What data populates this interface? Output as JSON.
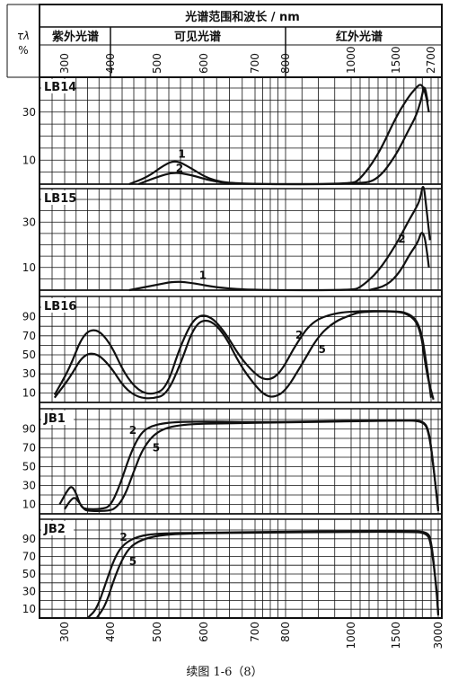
{
  "header": {
    "ylabel": "τλ",
    "yunit": "%",
    "title": "光谱范围和波长 / nm",
    "regions": [
      "紫外光谱",
      "可见光谱",
      "红外光谱"
    ]
  },
  "caption": "续图 1-6（8）",
  "chart_data": {
    "type": "line",
    "x_axis": {
      "label": "光谱范围和波长 / nm",
      "top_ticks": [
        "300",
        "400",
        "500",
        "600",
        "700",
        "800",
        "1000",
        "1500",
        "2700"
      ],
      "bottom_ticks": [
        "300",
        "400",
        "500",
        "600",
        "700",
        "800",
        "1000",
        "1500",
        "3000"
      ]
    },
    "panels": [
      {
        "name": "LB14",
        "yticks": [
          "30",
          "10"
        ],
        "ylim": [
          0,
          40
        ],
        "series": [
          {
            "name": "1",
            "points": [
              [
                440,
                0
              ],
              [
                480,
                3
              ],
              [
                515,
                8
              ],
              [
                540,
                10
              ],
              [
                570,
                7
              ],
              [
                610,
                2
              ],
              [
                660,
                0
              ],
              [
                1000,
                0
              ],
              [
                1100,
                2
              ],
              [
                1300,
                12
              ],
              [
                1500,
                28
              ],
              [
                1800,
                36
              ],
              [
                2000,
                40
              ],
              [
                2250,
                42
              ],
              [
                2450,
                38
              ],
              [
                2600,
                30
              ]
            ]
          },
          {
            "name": "2",
            "points": [
              [
                460,
                0
              ],
              [
                500,
                3
              ],
              [
                535,
                5
              ],
              [
                570,
                4
              ],
              [
                620,
                1
              ],
              [
                670,
                0
              ],
              [
                1100,
                0
              ],
              [
                1300,
                2
              ],
              [
                1500,
                12
              ],
              [
                1800,
                22
              ],
              [
                2000,
                28
              ],
              [
                2250,
                35
              ],
              [
                2400,
                42
              ],
              [
                2550,
                34
              ]
            ]
          }
        ],
        "labels": [
          {
            "text": "1",
            "at": [
              545,
              11
            ]
          },
          {
            "text": "2",
            "at": [
              540,
              5
            ]
          }
        ]
      },
      {
        "name": "LB15",
        "yticks": [
          "30",
          "10"
        ],
        "ylim": [
          0,
          40
        ],
        "series": [
          {
            "name": "1",
            "points": [
              [
                440,
                0
              ],
              [
                490,
                2
              ],
              [
                540,
                4
              ],
              [
                580,
                3
              ],
              [
                630,
                1
              ],
              [
                700,
                0
              ],
              [
                1000,
                0
              ],
              [
                1100,
                1
              ],
              [
                1300,
                8
              ],
              [
                1500,
                20
              ],
              [
                1800,
                30
              ],
              [
                2000,
                36
              ],
              [
                2200,
                40
              ],
              [
                2350,
                48
              ],
              [
                2500,
                35
              ],
              [
                2650,
                22
              ]
            ]
          },
          {
            "name": "2",
            "points": [
              [
                1200,
                0
              ],
              [
                1400,
                2
              ],
              [
                1600,
                8
              ],
              [
                1850,
                16
              ],
              [
                2100,
                21
              ],
              [
                2250,
                26
              ],
              [
                2400,
                24
              ],
              [
                2500,
                18
              ],
              [
                2600,
                10
              ]
            ]
          }
        ],
        "labels": [
          {
            "text": "1",
            "at": [
              590,
              5
            ]
          },
          {
            "text": "2",
            "at": [
              1550,
              21
            ]
          }
        ]
      },
      {
        "name": "LB16",
        "yticks": [
          "90",
          "70",
          "50",
          "30",
          "10"
        ],
        "ylim": [
          0,
          100
        ],
        "series": [
          {
            "name": "2",
            "points": [
              [
                280,
                8
              ],
              [
                310,
                35
              ],
              [
                340,
                72
              ],
              [
                370,
                78
              ],
              [
                400,
                62
              ],
              [
                430,
                30
              ],
              [
                460,
                12
              ],
              [
                490,
                8
              ],
              [
                520,
                15
              ],
              [
                550,
                60
              ],
              [
                580,
                90
              ],
              [
                610,
                92
              ],
              [
                640,
                75
              ],
              [
                670,
                48
              ],
              [
                700,
                30
              ],
              [
                730,
                24
              ],
              [
                760,
                25
              ],
              [
                790,
                35
              ],
              [
                830,
                60
              ],
              [
                880,
                85
              ],
              [
                950,
                94
              ],
              [
                1100,
                96
              ],
              [
                1400,
                96
              ],
              [
                1800,
                95
              ],
              [
                2200,
                82
              ],
              [
                2500,
                40
              ],
              [
                2700,
                5
              ]
            ]
          },
          {
            "name": "5",
            "points": [
              [
                280,
                5
              ],
              [
                310,
                25
              ],
              [
                340,
                50
              ],
              [
                370,
                52
              ],
              [
                400,
                38
              ],
              [
                430,
                15
              ],
              [
                460,
                5
              ],
              [
                490,
                4
              ],
              [
                520,
                8
              ],
              [
                550,
                40
              ],
              [
                580,
                82
              ],
              [
                610,
                88
              ],
              [
                640,
                72
              ],
              [
                670,
                40
              ],
              [
                700,
                18
              ],
              [
                730,
                8
              ],
              [
                760,
                5
              ],
              [
                800,
                12
              ],
              [
                850,
                40
              ],
              [
                900,
                70
              ],
              [
                950,
                85
              ],
              [
                1000,
                92
              ],
              [
                1100,
                95
              ],
              [
                1400,
                96
              ],
              [
                1800,
                94
              ],
              [
                2200,
                80
              ],
              [
                2500,
                30
              ],
              [
                2800,
                3
              ]
            ]
          }
        ],
        "labels": [
          {
            "text": "2",
            "at": [
              830,
              67
            ]
          },
          {
            "text": "5",
            "at": [
              900,
              52
            ]
          }
        ]
      },
      {
        "name": "JB1",
        "yticks": [
          "90",
          "70",
          "50",
          "30",
          "10"
        ],
        "ylim": [
          0,
          100
        ],
        "series": [
          {
            "name": "2",
            "points": [
              [
                290,
                10
              ],
              [
                305,
                24
              ],
              [
                315,
                30
              ],
              [
                325,
                22
              ],
              [
                335,
                8
              ],
              [
                345,
                5
              ],
              [
                380,
                5
              ],
              [
                400,
                8
              ],
              [
                420,
                30
              ],
              [
                440,
                60
              ],
              [
                460,
                82
              ],
              [
                480,
                92
              ],
              [
                520,
                97
              ],
              [
                600,
                98
              ],
              [
                700,
                97
              ],
              [
                900,
                98
              ],
              [
                1200,
                99
              ],
              [
                1500,
                99
              ],
              [
                1800,
                99
              ],
              [
                2300,
                99
              ],
              [
                2600,
                90
              ],
              [
                2800,
                50
              ],
              [
                3000,
                5
              ]
            ]
          },
          {
            "name": "5",
            "points": [
              [
                300,
                5
              ],
              [
                312,
                14
              ],
              [
                322,
                18
              ],
              [
                332,
                12
              ],
              [
                342,
                5
              ],
              [
                350,
                3
              ],
              [
                390,
                3
              ],
              [
                410,
                5
              ],
              [
                430,
                18
              ],
              [
                450,
                45
              ],
              [
                470,
                70
              ],
              [
                500,
                88
              ],
              [
                550,
                95
              ],
              [
                650,
                96
              ],
              [
                800,
                97
              ],
              [
                1000,
                98
              ],
              [
                1500,
                99
              ],
              [
                2300,
                99
              ],
              [
                2600,
                88
              ],
              [
                2850,
                40
              ],
              [
                3000,
                3
              ]
            ]
          }
        ],
        "labels": [
          {
            "text": "2",
            "at": [
              440,
              85
            ]
          },
          {
            "text": "5",
            "at": [
              490,
              66
            ]
          }
        ]
      },
      {
        "name": "JB2",
        "yticks": [
          "90",
          "70",
          "50",
          "30",
          "10"
        ],
        "ylim": [
          0,
          100
        ],
        "series": [
          {
            "name": "2",
            "points": [
              [
                350,
                0
              ],
              [
                370,
                10
              ],
              [
                390,
                40
              ],
              [
                410,
                70
              ],
              [
                430,
                85
              ],
              [
                460,
                93
              ],
              [
                500,
                96
              ],
              [
                600,
                97
              ],
              [
                800,
                98
              ],
              [
                1200,
                99
              ],
              [
                1800,
                99
              ],
              [
                2500,
                98
              ],
              [
                2700,
                90
              ],
              [
                2900,
                40
              ],
              [
                3000,
                5
              ]
            ]
          },
          {
            "name": "5",
            "points": [
              [
                370,
                0
              ],
              [
                390,
                15
              ],
              [
                410,
                48
              ],
              [
                430,
                72
              ],
              [
                450,
                85
              ],
              [
                490,
                93
              ],
              [
                550,
                96
              ],
              [
                700,
                97
              ],
              [
                1000,
                98
              ],
              [
                1800,
                98
              ],
              [
                2500,
                97
              ],
              [
                2700,
                85
              ],
              [
                2950,
                30
              ],
              [
                3000,
                3
              ]
            ]
          }
        ],
        "labels": [
          {
            "text": "2",
            "at": [
              420,
              88
            ]
          },
          {
            "text": "5",
            "at": [
              440,
              60
            ]
          }
        ]
      }
    ]
  }
}
